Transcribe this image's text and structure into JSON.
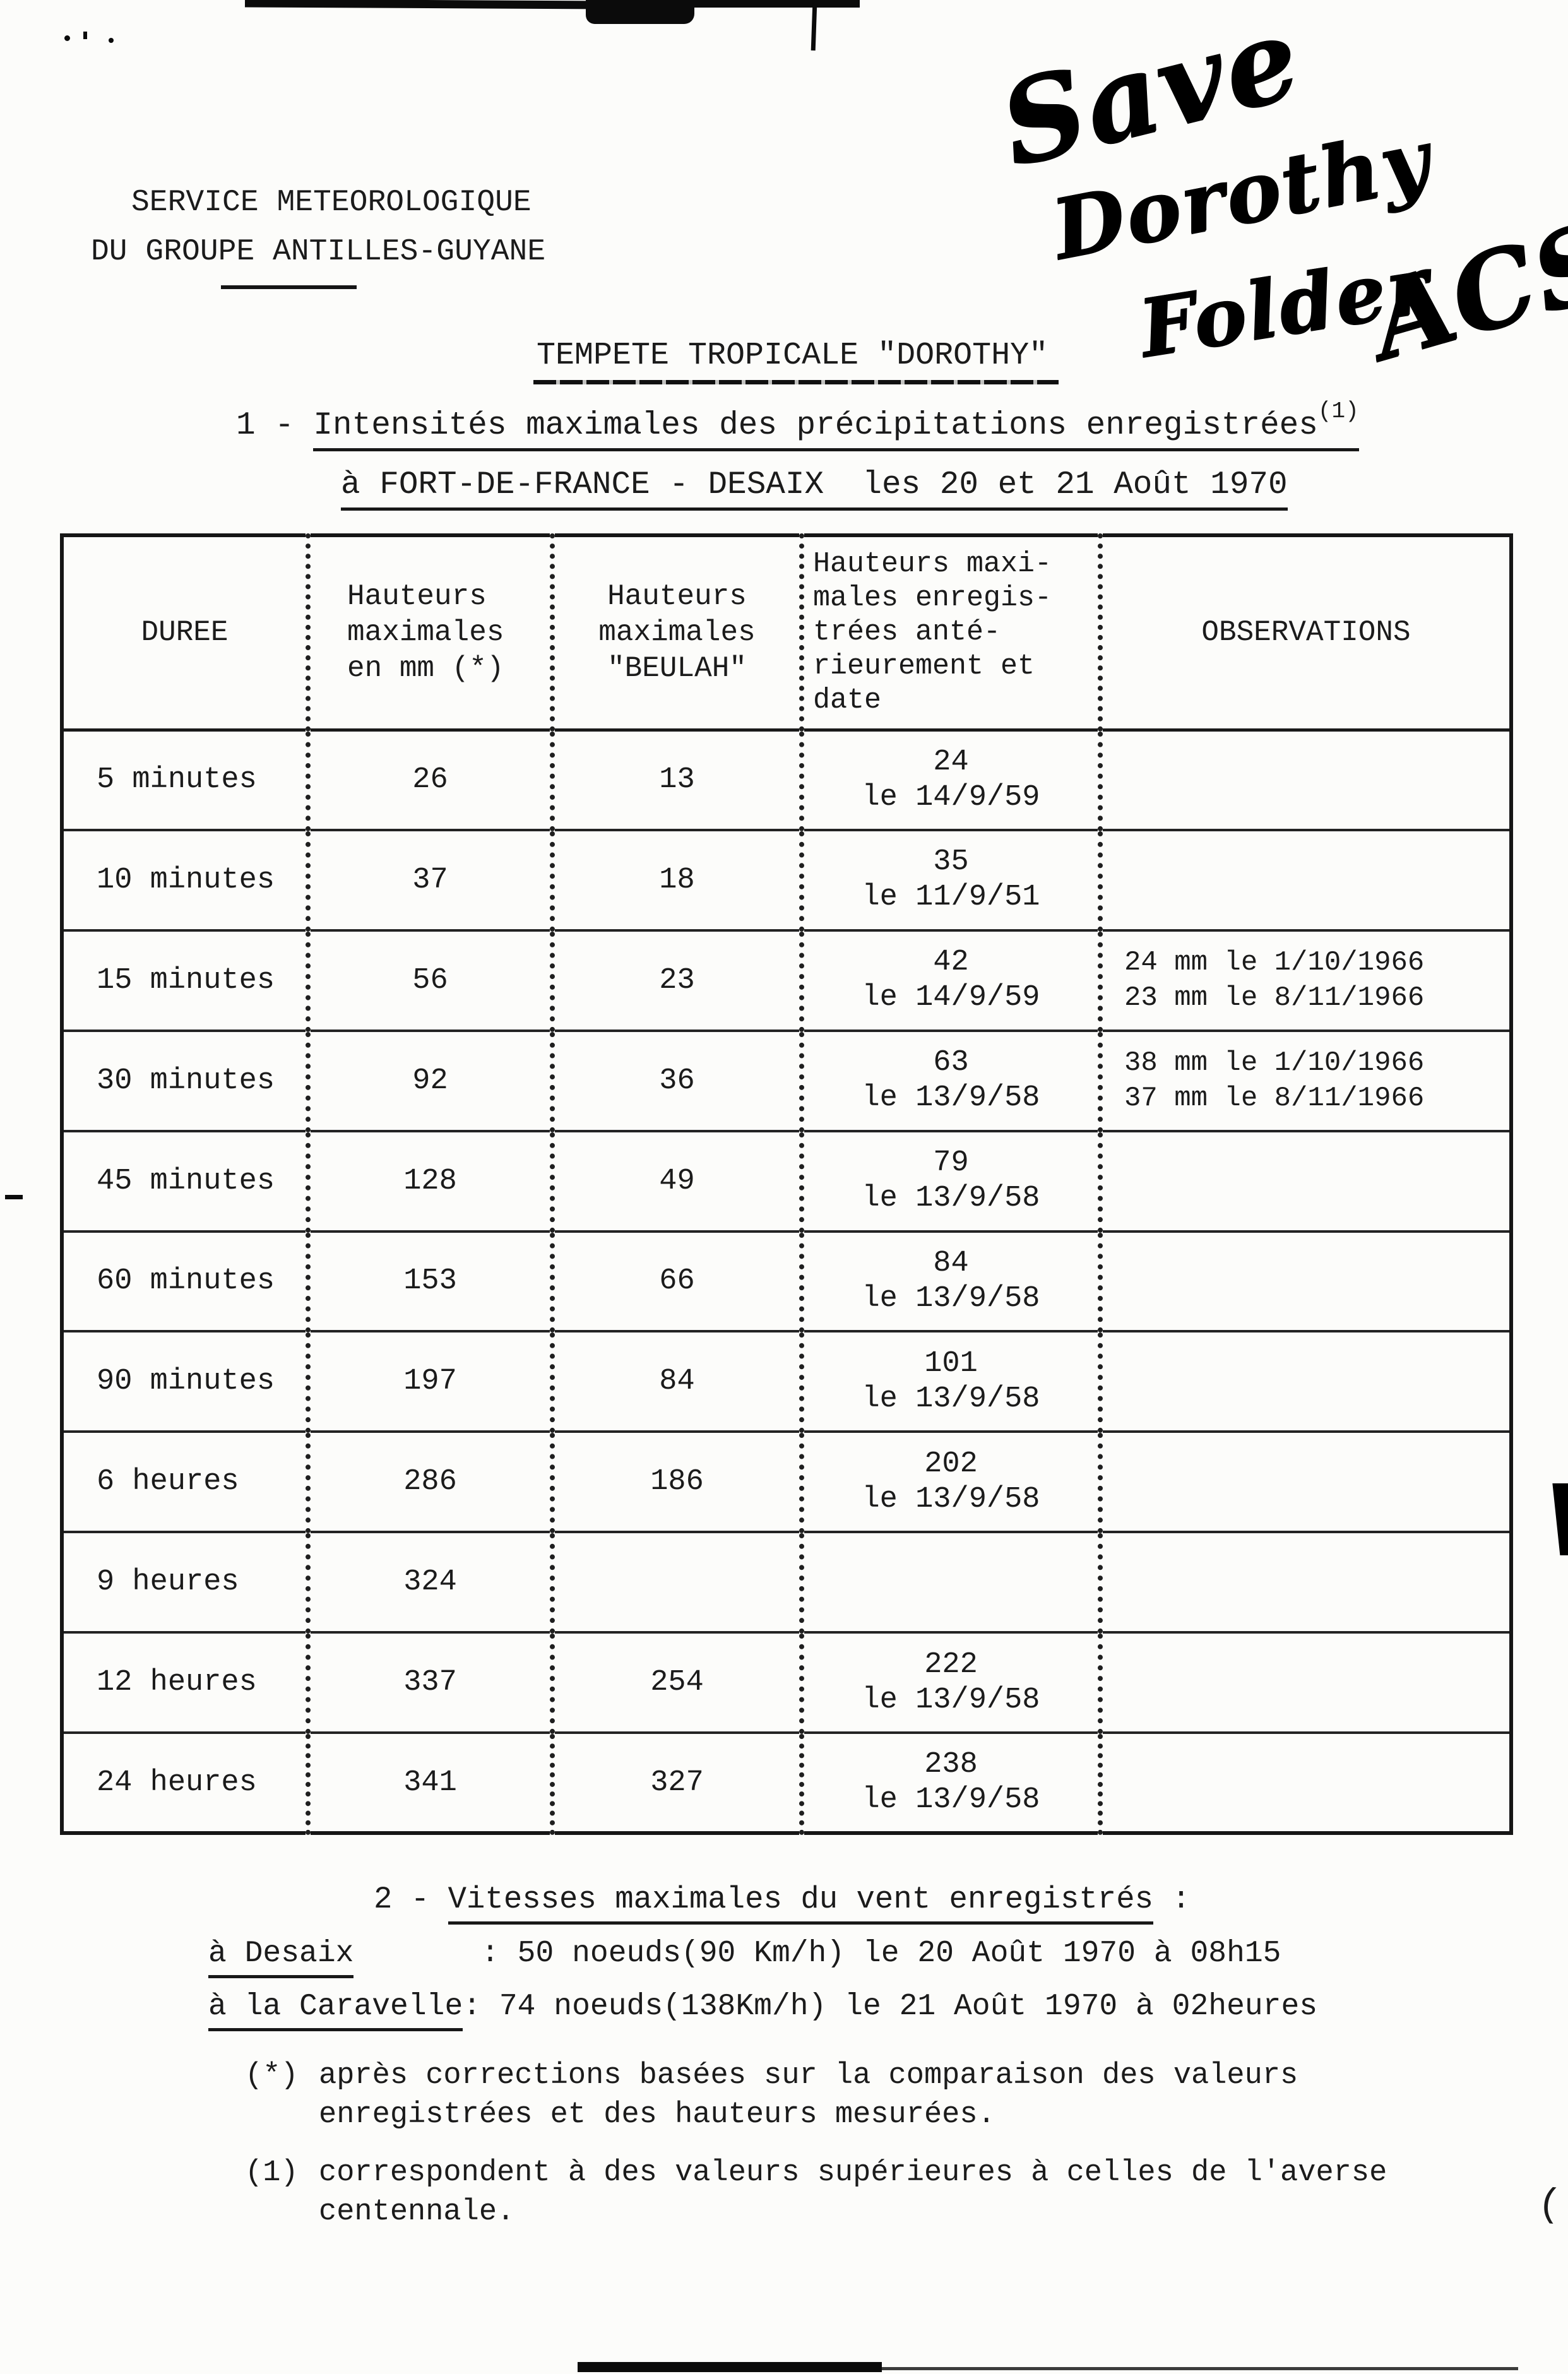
{
  "page": {
    "background": "#fcfcfa",
    "ink": "#1b1b1b"
  },
  "letterhead": {
    "line1": "SERVICE METEOROLOGIQUE",
    "line2": "DU GROUPE ANTILLES-GUYANE"
  },
  "handwriting": {
    "word1": "Save",
    "word2": "Dorothy",
    "word3": "Folder",
    "initials": "ACS"
  },
  "title": "TEMPETE TROPICALE \"DOROTHY\"",
  "section1": {
    "number": "1 - ",
    "heading": "Intensités maximales des précipitations enregistrées",
    "superscript": "(1)",
    "subheading": "à FORT-DE-FRANCE - DESAIX  les 20 et 21 Août 1970"
  },
  "table": {
    "columns": {
      "duree": [
        "DUREE"
      ],
      "mm": [
        "Hauteurs",
        "maximales",
        "en mm (*)"
      ],
      "beulah": [
        "Hauteurs",
        "maximales",
        "\"BEULAH\""
      ],
      "anterieur": [
        "Hauteurs maxi-",
        "males enregis-",
        "trées anté-",
        "rieurement et",
        "date"
      ],
      "observations": [
        "OBSERVATIONS"
      ]
    },
    "rows": [
      {
        "duree": "5 minutes",
        "mm": "26",
        "beulah": "13",
        "anterieur_valeur": "24",
        "anterieur_date": "le 14/9/59",
        "obs1": "",
        "obs2": ""
      },
      {
        "duree": "10 minutes",
        "mm": "37",
        "beulah": "18",
        "anterieur_valeur": "35",
        "anterieur_date": "le 11/9/51",
        "obs1": "",
        "obs2": ""
      },
      {
        "duree": "15 minutes",
        "mm": "56",
        "beulah": "23",
        "anterieur_valeur": "42",
        "anterieur_date": "le 14/9/59",
        "obs1": "24 mm le 1/10/1966",
        "obs2": "23 mm le 8/11/1966"
      },
      {
        "duree": "30 minutes",
        "mm": "92",
        "beulah": "36",
        "anterieur_valeur": "63",
        "anterieur_date": "le 13/9/58",
        "obs1": "38 mm le 1/10/1966",
        "obs2": "37 mm le 8/11/1966"
      },
      {
        "duree": "45 minutes",
        "mm": "128",
        "beulah": "49",
        "anterieur_valeur": "79",
        "anterieur_date": "le 13/9/58",
        "obs1": "",
        "obs2": ""
      },
      {
        "duree": "60 minutes",
        "mm": "153",
        "beulah": "66",
        "anterieur_valeur": "84",
        "anterieur_date": "le 13/9/58",
        "obs1": "",
        "obs2": ""
      },
      {
        "duree": "90 minutes",
        "mm": "197",
        "beulah": "84",
        "anterieur_valeur": "101",
        "anterieur_date": "le 13/9/58",
        "obs1": "",
        "obs2": ""
      },
      {
        "duree": "6 heures",
        "mm": "286",
        "beulah": "186",
        "anterieur_valeur": "202",
        "anterieur_date": "le 13/9/58",
        "obs1": "",
        "obs2": ""
      },
      {
        "duree": "9 heures",
        "mm": "324",
        "beulah": "",
        "anterieur_valeur": "",
        "anterieur_date": "",
        "obs1": "",
        "obs2": ""
      },
      {
        "duree": "12 heures",
        "mm": "337",
        "beulah": "254",
        "anterieur_valeur": "222",
        "anterieur_date": "le 13/9/58",
        "obs1": "",
        "obs2": ""
      },
      {
        "duree": "24 heures",
        "mm": "341",
        "beulah": "327",
        "anterieur_valeur": "238",
        "anterieur_date": "le 13/9/58",
        "obs1": "",
        "obs2": ""
      }
    ]
  },
  "section2": {
    "number": "2 - ",
    "heading": "Vitesses maximales du vent enregistrés",
    "heading_suffix": " :",
    "stations": [
      {
        "name": "à Desaix",
        "details": "       : 50 noeuds(90 Km/h) le 20 Août 1970 à 08h15"
      },
      {
        "name": "à la Caravelle",
        "details": ": 74 noeuds(138Km/h) le 21 Août 1970 à 02heures"
      }
    ]
  },
  "footnotes": [
    {
      "marker": "(*)",
      "line1": "après corrections basées sur la comparaison des valeurs",
      "line2": "enregistrées et des hauteurs mesurées."
    },
    {
      "marker": "(1)",
      "line1": "correspondent à des valeurs supérieures à celles de l'averse",
      "line2": "centennale."
    }
  ],
  "artifacts": {
    "margin_mark": "(|"
  }
}
